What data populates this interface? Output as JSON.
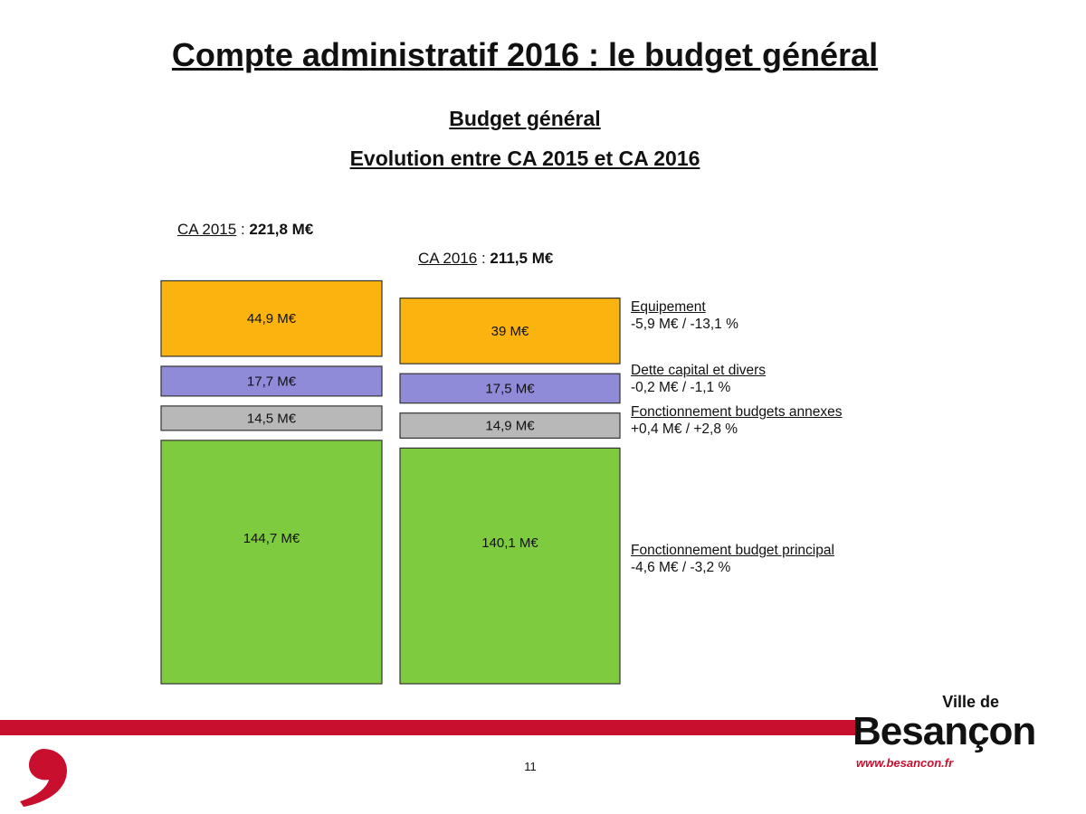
{
  "page": {
    "title": "Compte administratif 2016 : le budget général",
    "subtitle1": "Budget général",
    "subtitle2": "Evolution entre CA 2015 et CA 2016",
    "page_number": "11"
  },
  "logo": {
    "ville_de": "Ville de",
    "city": "Besançon",
    "url": "www.besancon.fr"
  },
  "colors": {
    "brand_red": "#c8102e",
    "equipement": "#fbb40f",
    "dette": "#8f8bd8",
    "annexes": "#b8b8b8",
    "principal": "#7fcb3f"
  },
  "chart_data": {
    "type": "bar",
    "layout": "stacked-blocks",
    "unit": "M€",
    "columns": [
      {
        "label": "CA 2015",
        "separator": " : ",
        "total_label": "221,8 M€",
        "total": 221.8
      },
      {
        "label": "CA 2016",
        "separator": " : ",
        "total_label": "211,5 M€",
        "total": 211.5
      }
    ],
    "series": [
      {
        "name": "Equipement",
        "change_label": "-5,9 M€ / -13,1 %",
        "color": "#fbb40f",
        "values": [
          44.9,
          39
        ],
        "value_labels": [
          "44,9 M€",
          "39 M€"
        ]
      },
      {
        "name": "Dette capital et divers",
        "change_label": "-0,2 M€ / -1,1 %",
        "color": "#8f8bd8",
        "values": [
          17.7,
          17.5
        ],
        "value_labels": [
          "17,7 M€",
          "17,5 M€"
        ]
      },
      {
        "name": "Fonctionnement budgets annexes",
        "change_label": "+0,4 M€ / +2,8 %",
        "color": "#b8b8b8",
        "values": [
          14.5,
          14.9
        ],
        "value_labels": [
          "14,5 M€",
          "14,9 M€"
        ]
      },
      {
        "name": "Fonctionnement budget principal",
        "change_label": "-4,6 M€ / -3,2 %",
        "color": "#7fcb3f",
        "values": [
          144.7,
          140.1
        ],
        "value_labels": [
          "144,7 M€",
          "140,1 M€"
        ]
      }
    ]
  }
}
